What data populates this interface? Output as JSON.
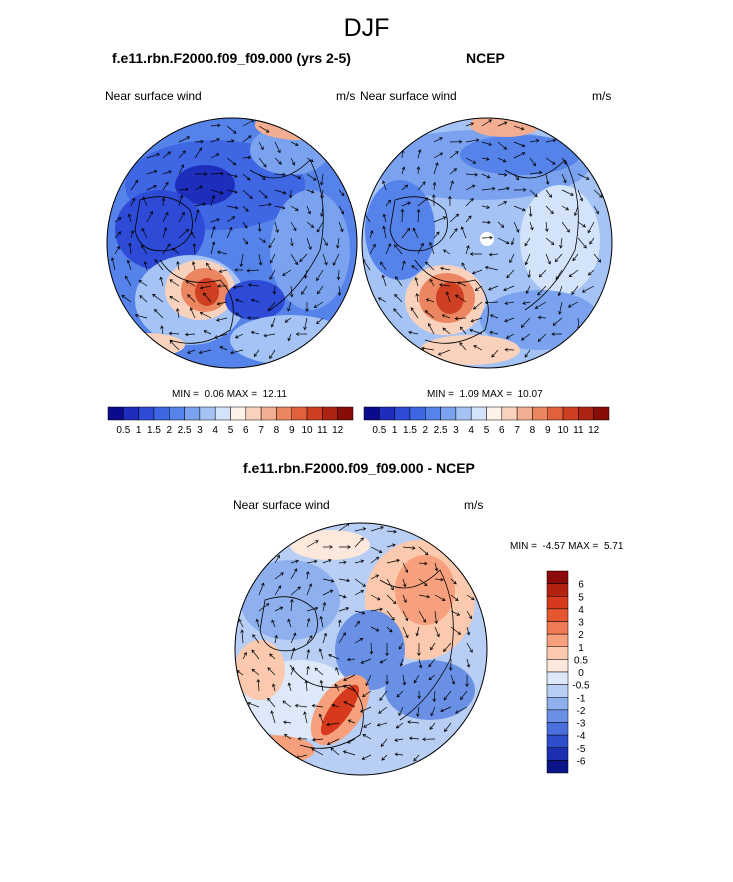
{
  "figure": {
    "title": "DJF",
    "units": "m/s",
    "variable": "Near surface wind"
  },
  "chart_data": [
    {
      "type": "heatmap",
      "title": "f.e11.rbn.F2000.f09_f09.000 (yrs 2-5)",
      "left_label": "Near surface wind",
      "right_label": "m/s",
      "min_label": "MIN =",
      "min": "0.06",
      "max_label": "MAX =",
      "max": "12.11",
      "levels": [
        "0.5",
        "1",
        "1.5",
        "2",
        "2.5",
        "3",
        "4",
        "5",
        "6",
        "7",
        "8",
        "9",
        "10",
        "11",
        "12"
      ],
      "colors": [
        "#0a0a8c",
        "#1d2dbc",
        "#2d4bd6",
        "#3f66e3",
        "#5683ea",
        "#7aa2ef",
        "#a5c3f4",
        "#d3e3fa",
        "#fdf2e8",
        "#f9d2be",
        "#f3ad91",
        "#ec8660",
        "#e2613d",
        "#cf3f21",
        "#ad2314",
        "#870d09"
      ]
    },
    {
      "type": "heatmap",
      "title": "NCEP",
      "left_label": "Near surface wind",
      "right_label": "m/s",
      "min_label": "MIN =",
      "min": "1.09",
      "max_label": "MAX =",
      "max": "10.07",
      "levels": [
        "0.5",
        "1",
        "1.5",
        "2",
        "2.5",
        "3",
        "4",
        "5",
        "6",
        "7",
        "8",
        "9",
        "10",
        "11",
        "12"
      ],
      "colors": [
        "#0a0a8c",
        "#1d2dbc",
        "#2d4bd6",
        "#3f66e3",
        "#5683ea",
        "#7aa2ef",
        "#a5c3f4",
        "#d3e3fa",
        "#fdf2e8",
        "#f9d2be",
        "#f3ad91",
        "#ec8660",
        "#e2613d",
        "#cf3f21",
        "#ad2314",
        "#870d09"
      ]
    },
    {
      "type": "heatmap",
      "title": "f.e11.rbn.F2000.f09_f09.000 - NCEP",
      "left_label": "Near surface wind",
      "right_label": "m/s",
      "min_label": "MIN =",
      "min": "-4.57",
      "max_label": "MAX =",
      "max": "5.71",
      "levels": [
        "6",
        "5",
        "4",
        "3",
        "2",
        "1",
        "0.5",
        "0",
        "-0.5",
        "-1",
        "-2",
        "-3",
        "-4",
        "-5",
        "-6"
      ],
      "colors": [
        "#8c0a0a",
        "#b32210",
        "#d6391c",
        "#e45731",
        "#ef7a55",
        "#f6a07d",
        "#fbc9ad",
        "#fde9dc",
        "#dde8f9",
        "#b8cef4",
        "#8fb0ee",
        "#6a90e6",
        "#4a6fdc",
        "#2f4ec9",
        "#1c2fae",
        "#0c1587"
      ]
    }
  ]
}
